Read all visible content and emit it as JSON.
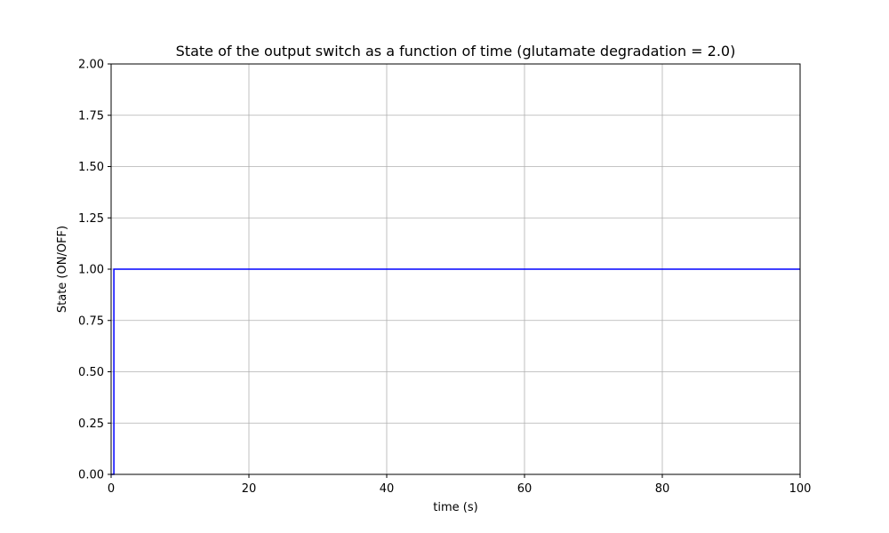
{
  "chart_data": {
    "type": "line",
    "title": "State of the output switch as a function of time (glutamate degradation = 2.0)",
    "xlabel": "time (s)",
    "ylabel": "State (ON/OFF)",
    "xlim": [
      0,
      100
    ],
    "ylim": [
      0,
      2
    ],
    "xticks": [
      0,
      20,
      40,
      60,
      80,
      100
    ],
    "xtick_labels": [
      "0",
      "20",
      "40",
      "60",
      "80",
      "100"
    ],
    "yticks": [
      0,
      0.25,
      0.5,
      0.75,
      1.0,
      1.25,
      1.5,
      1.75,
      2.0
    ],
    "ytick_labels": [
      "0.00",
      "0.25",
      "0.50",
      "0.75",
      "1.00",
      "1.25",
      "1.50",
      "1.75",
      "2.00"
    ],
    "grid": true,
    "series": [
      {
        "color": "#0000ff",
        "x": [
          0,
          0.1,
          0.2,
          0.3,
          0.4,
          0.4,
          0.5,
          10,
          20,
          30,
          40,
          50,
          60,
          70,
          80,
          90,
          100
        ],
        "y": [
          0,
          0,
          0,
          0,
          0,
          1,
          1,
          1,
          1,
          1,
          1,
          1,
          1,
          1,
          1,
          1,
          1
        ]
      }
    ]
  }
}
